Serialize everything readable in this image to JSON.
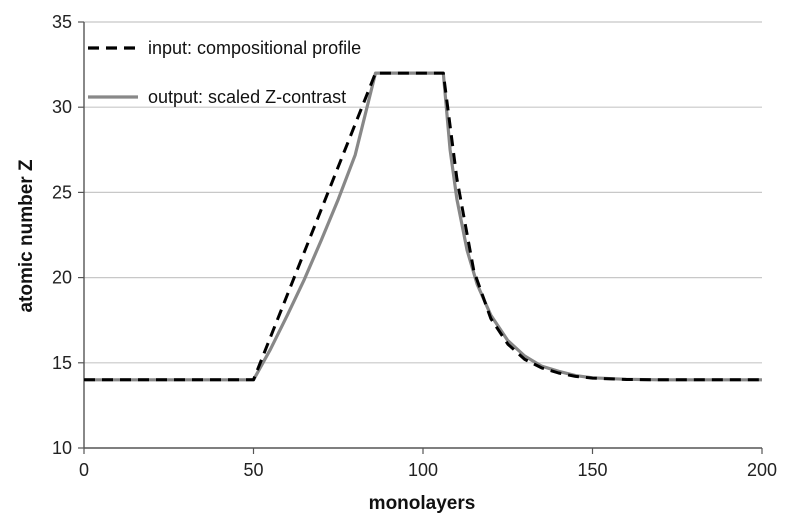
{
  "chart_data": {
    "type": "line",
    "title": "",
    "xlabel": "monolayers",
    "ylabel": "atomic number Z",
    "xlim": [
      0,
      200
    ],
    "ylim": [
      10,
      35
    ],
    "xticks": [
      0,
      50,
      100,
      150,
      200
    ],
    "yticks": [
      10,
      15,
      20,
      25,
      30,
      35
    ],
    "grid": "horizontal",
    "legend_position": "top-left",
    "series": [
      {
        "name": "input: compositional profile",
        "style": "dashed",
        "color": "#000000",
        "x": [
          0,
          50,
          86,
          106,
          110,
          115,
          120,
          125,
          130,
          135,
          140,
          145,
          150,
          160,
          170,
          200
        ],
        "y": [
          14,
          14,
          32,
          32,
          25.8,
          20.4,
          17.6,
          16.1,
          15.2,
          14.7,
          14.4,
          14.2,
          14.1,
          14.02,
          14,
          14
        ]
      },
      {
        "name": "output: scaled Z-contrast",
        "style": "solid",
        "color": "#888888",
        "x": [
          0,
          50,
          55,
          60,
          65,
          70,
          75,
          80,
          86,
          106,
          108,
          110,
          113,
          116,
          120,
          125,
          130,
          135,
          140,
          145,
          150,
          160,
          170,
          200
        ],
        "y": [
          14,
          14,
          15.8,
          17.8,
          19.9,
          22.2,
          24.6,
          27.2,
          32,
          32,
          27.5,
          24.6,
          21.6,
          19.6,
          17.8,
          16.3,
          15.4,
          14.8,
          14.5,
          14.25,
          14.12,
          14.03,
          14,
          14
        ]
      }
    ]
  }
}
